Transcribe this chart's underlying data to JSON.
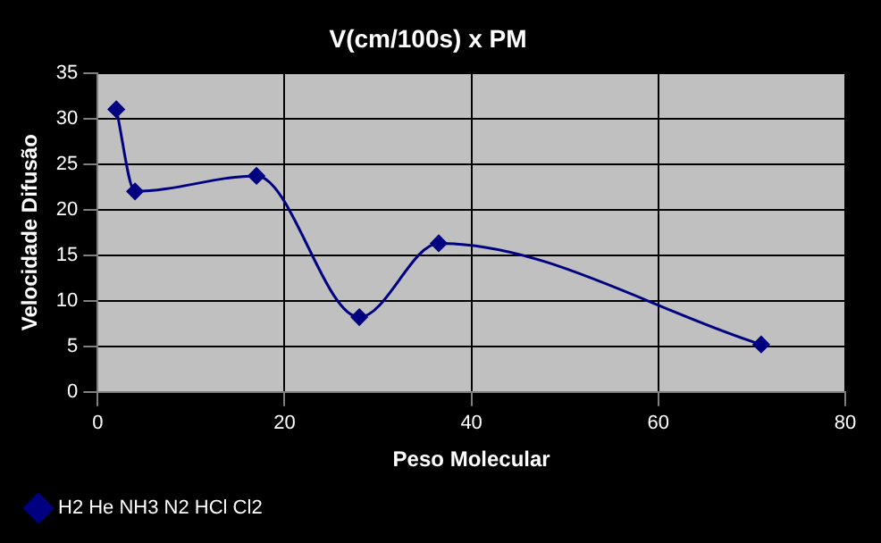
{
  "chart_data": {
    "type": "line",
    "title": "V(cm/100s) x PM",
    "xlabel": "Peso Molecular",
    "ylabel": "Velocidade Difusão",
    "x": [
      2,
      4,
      17,
      28,
      36.5,
      71
    ],
    "series": [
      {
        "name": "H2 He NH3 N2 HCl Cl2",
        "color": "#000080",
        "values": [
          31,
          22,
          23.7,
          8.2,
          16.3,
          5.2
        ]
      }
    ],
    "xlim": [
      0,
      80
    ],
    "xticks": [
      0,
      20,
      40,
      60,
      80
    ],
    "ylim": [
      0,
      35
    ],
    "yticks": [
      0,
      5,
      10,
      15,
      20,
      25,
      30,
      35
    ],
    "grid": true,
    "legend": "bottom left",
    "marker": "diamond",
    "line_style": "solid"
  }
}
